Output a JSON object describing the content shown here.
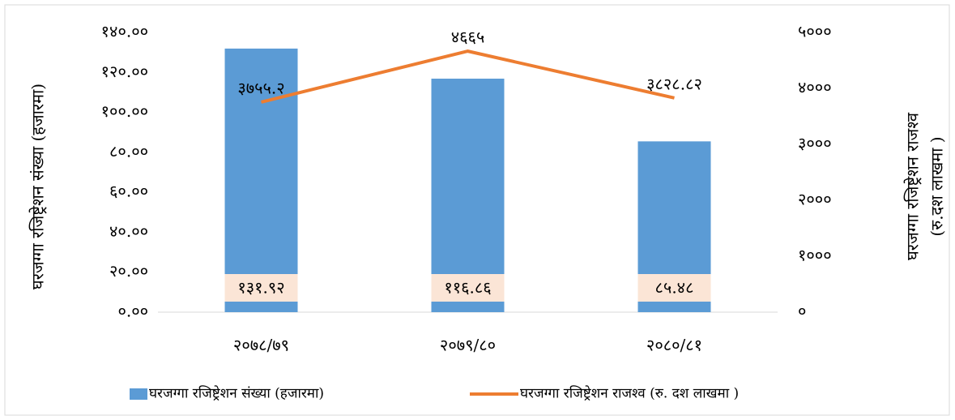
{
  "chart_data": {
    "type": "bar-line",
    "categories": [
      "२०७८/७९",
      "२०७९/८०",
      "२०८०/८१"
    ],
    "ylabel": "घरजग्गा रजिष्ट्रेशन संख्या (हजारमा)",
    "y2label": [
      "घरजग्गा रजिष्ट्रेशन राजश्व",
      "(रु.दश लाखमा )"
    ],
    "series": [
      {
        "name": "घरजग्गा रजिष्ट्रेशन संख्या (हजारमा)",
        "type": "bar",
        "color": "#5b9bd5",
        "values": [
          131.92,
          116.86,
          85.48
        ],
        "value_labels": [
          "१३१.९२",
          "११६.८६",
          "८५.४८"
        ]
      },
      {
        "name": "घरजग्गा रजिष्ट्रेशन राजश्व (रु. दश लाखमा )",
        "type": "line",
        "axis": "y2",
        "color": "#ed7d31",
        "values": [
          3755.2,
          4665,
          3828.82
        ],
        "value_labels": [
          "३७५५.२",
          "४६६५",
          "३८२८.८२"
        ]
      }
    ],
    "ylim": [
      0,
      140
    ],
    "yticks": [
      {
        "value": 0,
        "label": "०.००"
      },
      {
        "value": 20,
        "label": "२०.००"
      },
      {
        "value": 40,
        "label": "४०.००"
      },
      {
        "value": 60,
        "label": "६०.००"
      },
      {
        "value": 80,
        "label": "८०.००"
      },
      {
        "value": 100,
        "label": "१००.००"
      },
      {
        "value": 120,
        "label": "१२०.००"
      },
      {
        "value": 140,
        "label": "१४०.००"
      }
    ],
    "y2lim": [
      0,
      5000
    ],
    "y2ticks": [
      {
        "value": 0,
        "label": "०"
      },
      {
        "value": 1000,
        "label": "१०००"
      },
      {
        "value": 2000,
        "label": "२०००"
      },
      {
        "value": 3000,
        "label": "३०००"
      },
      {
        "value": 4000,
        "label": "४०००"
      },
      {
        "value": 5000,
        "label": "५०००"
      }
    ],
    "grid": false,
    "legend": "bottom"
  }
}
